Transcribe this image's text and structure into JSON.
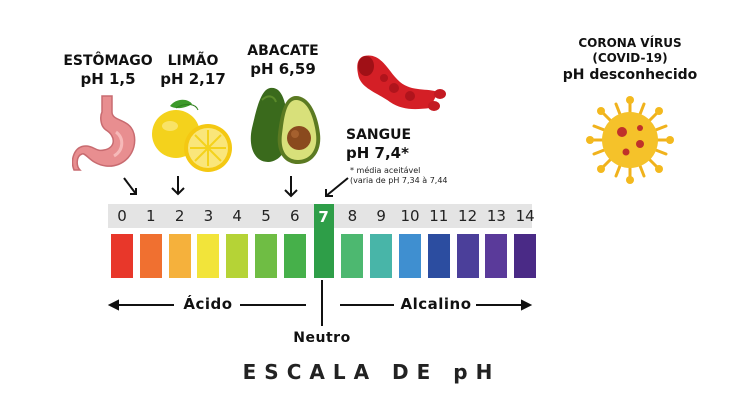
{
  "labels": {
    "estomago": {
      "name": "ESTÔMAGO",
      "ph": "pH 1,5"
    },
    "limao": {
      "name": "LIMÃO",
      "ph": "pH 2,17"
    },
    "abacate": {
      "name": "ABACATE",
      "ph": "pH 6,59"
    },
    "sangue": {
      "name": "SANGUE",
      "ph": "pH 7,4*",
      "note1": "* média aceitável",
      "note2": "(varia de pH 7,34 à 7,44"
    },
    "corona": {
      "name": "CORONA VÍRUS",
      "sub": "(COVID-19)",
      "ph": "pH desconhecido"
    }
  },
  "scale": {
    "numbers": [
      "0",
      "1",
      "2",
      "3",
      "4",
      "5",
      "6",
      "7",
      "8",
      "9",
      "10",
      "11",
      "12",
      "13",
      "14"
    ],
    "colors": [
      "#e8372a",
      "#f07030",
      "#f5b13c",
      "#f2e43a",
      "#b5d336",
      "#6fbd44",
      "#46b04a",
      "#2e9e48",
      "#4db870",
      "#48b5a8",
      "#3f8fd0",
      "#2c4da0",
      "#4b3f9a",
      "#5a3a9a",
      "#4a2a86"
    ],
    "acido": "Ácido",
    "alcalino": "Alcalino",
    "neutro": "Neutro"
  },
  "title": "ESCALA DE pH",
  "icons": [
    "stomach-icon",
    "lemon-icon",
    "avocado-icon",
    "blood-cell-icon",
    "coronavirus-icon"
  ]
}
